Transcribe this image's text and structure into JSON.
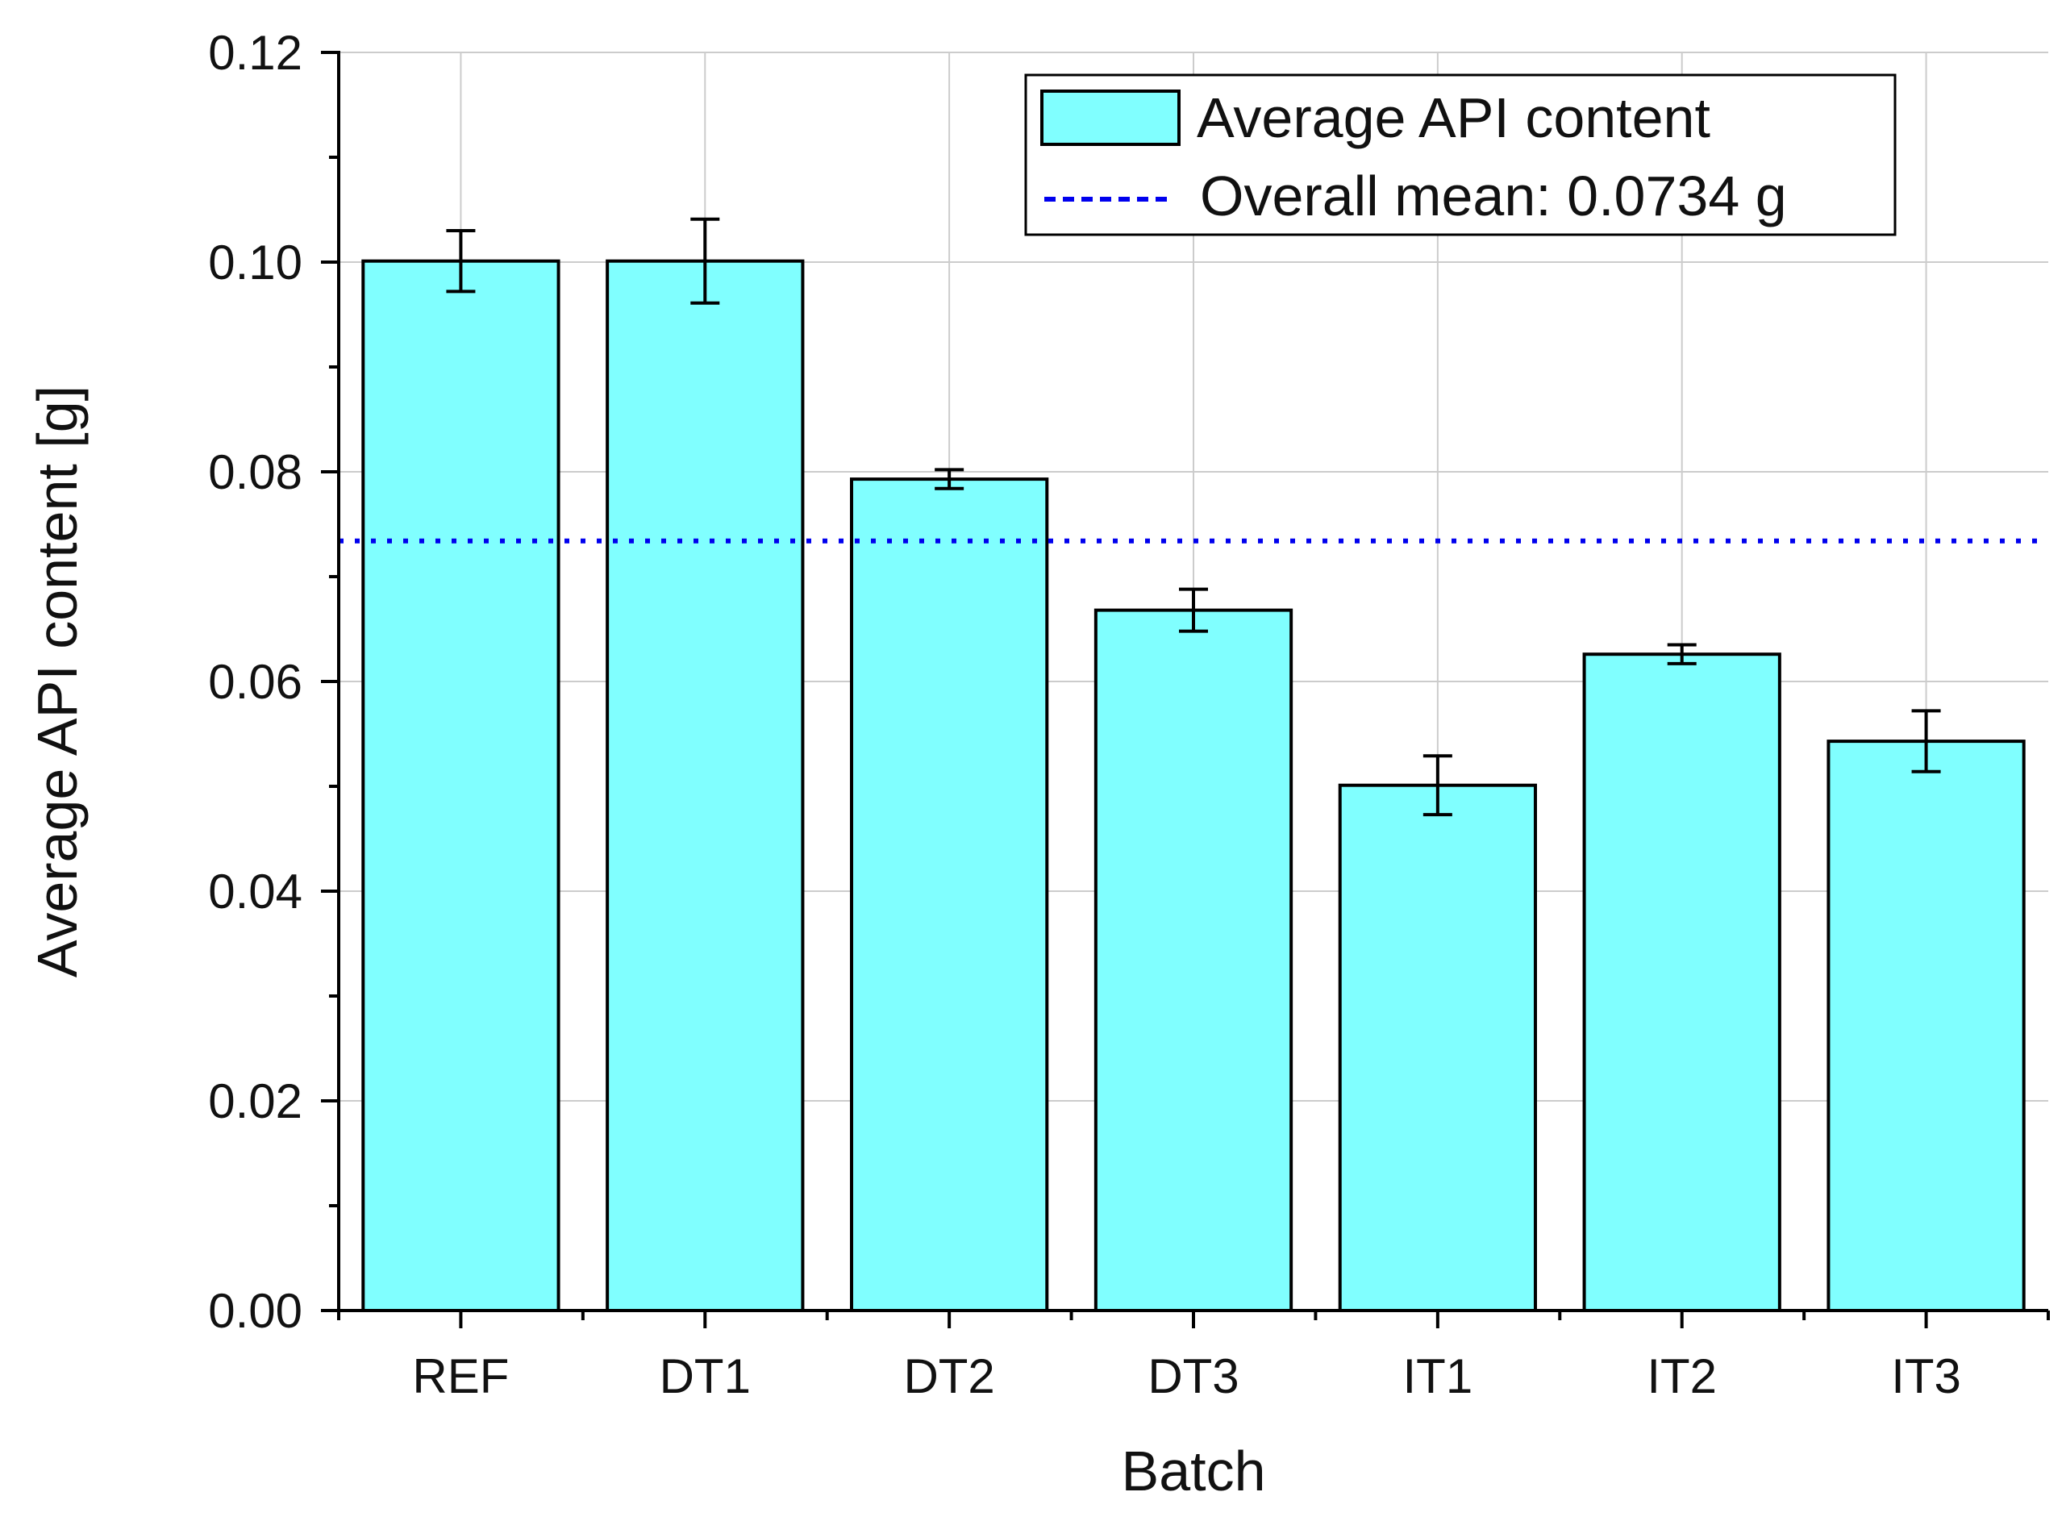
{
  "chart_data": {
    "type": "bar",
    "title": "",
    "xlabel": "Batch",
    "ylabel": "Average API content [g]",
    "categories": [
      "REF",
      "DT1",
      "DT2",
      "DT3",
      "IT1",
      "IT2",
      "IT3"
    ],
    "series": [
      {
        "name": "Average API content",
        "values": [
          0.1001,
          0.1001,
          0.0793,
          0.0668,
          0.0501,
          0.0626,
          0.0543
        ],
        "errors": [
          0.0029,
          0.004,
          0.0009,
          0.002,
          0.0028,
          0.0009,
          0.0029
        ],
        "color": "#80ffff"
      }
    ],
    "reference_line": {
      "label": "Overall mean: 0.0734 g",
      "value": 0.0734,
      "color": "#0000ee",
      "style": "dashed"
    },
    "ylim": [
      0,
      0.12
    ],
    "yticks": [
      "0.00",
      "0.02",
      "0.04",
      "0.06",
      "0.08",
      "0.10",
      "0.12"
    ],
    "ytick_values": [
      0,
      0.02,
      0.04,
      0.06,
      0.08,
      0.1,
      0.12
    ],
    "grid": true,
    "legend_position": "top-right",
    "legend": {
      "bar_entry": "Average API content",
      "line_entry": "Overall mean: 0.0734 g"
    }
  }
}
